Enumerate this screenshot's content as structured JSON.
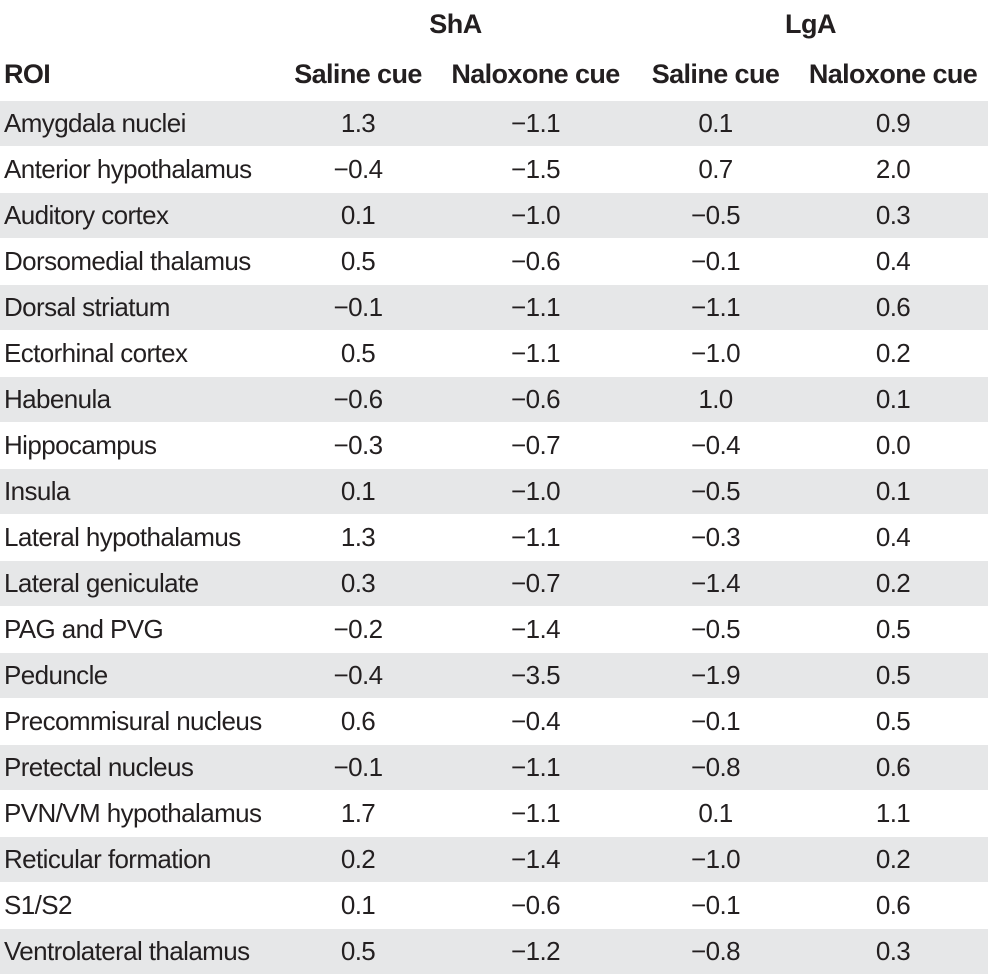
{
  "table": {
    "group_headers": [
      "ShA",
      "LgA"
    ],
    "column_headers": [
      "ROI",
      "Saline cue",
      "Naloxone cue",
      "Saline cue",
      "Naloxone cue"
    ],
    "rows": [
      {
        "roi": "Amygdala nuclei",
        "sha_saline": "1.3",
        "sha_naloxone": "−1.1",
        "lga_saline": "0.1",
        "lga_naloxone": "0.9"
      },
      {
        "roi": "Anterior hypothalamus",
        "sha_saline": "−0.4",
        "sha_naloxone": "−1.5",
        "lga_saline": "0.7",
        "lga_naloxone": "2.0"
      },
      {
        "roi": "Auditory cortex",
        "sha_saline": "0.1",
        "sha_naloxone": "−1.0",
        "lga_saline": "−0.5",
        "lga_naloxone": "0.3"
      },
      {
        "roi": "Dorsomedial thalamus",
        "sha_saline": "0.5",
        "sha_naloxone": "−0.6",
        "lga_saline": "−0.1",
        "lga_naloxone": "0.4"
      },
      {
        "roi": "Dorsal striatum",
        "sha_saline": "−0.1",
        "sha_naloxone": "−1.1",
        "lga_saline": "−1.1",
        "lga_naloxone": "0.6"
      },
      {
        "roi": "Ectorhinal cortex",
        "sha_saline": "0.5",
        "sha_naloxone": "−1.1",
        "lga_saline": "−1.0",
        "lga_naloxone": "0.2"
      },
      {
        "roi": "Habenula",
        "sha_saline": "−0.6",
        "sha_naloxone": "−0.6",
        "lga_saline": "1.0",
        "lga_naloxone": "0.1"
      },
      {
        "roi": "Hippocampus",
        "sha_saline": "−0.3",
        "sha_naloxone": "−0.7",
        "lga_saline": "−0.4",
        "lga_naloxone": "0.0"
      },
      {
        "roi": "Insula",
        "sha_saline": "0.1",
        "sha_naloxone": "−1.0",
        "lga_saline": "−0.5",
        "lga_naloxone": "0.1"
      },
      {
        "roi": "Lateral hypothalamus",
        "sha_saline": "1.3",
        "sha_naloxone": "−1.1",
        "lga_saline": "−0.3",
        "lga_naloxone": "0.4"
      },
      {
        "roi": "Lateral geniculate",
        "sha_saline": "0.3",
        "sha_naloxone": "−0.7",
        "lga_saline": "−1.4",
        "lga_naloxone": "0.2"
      },
      {
        "roi": "PAG and PVG",
        "sha_saline": "−0.2",
        "sha_naloxone": "−1.4",
        "lga_saline": "−0.5",
        "lga_naloxone": "0.5"
      },
      {
        "roi": "Peduncle",
        "sha_saline": "−0.4",
        "sha_naloxone": "−3.5",
        "lga_saline": "−1.9",
        "lga_naloxone": "0.5"
      },
      {
        "roi": "Precommisural nucleus",
        "sha_saline": "0.6",
        "sha_naloxone": "−0.4",
        "lga_saline": "−0.1",
        "lga_naloxone": "0.5"
      },
      {
        "roi": "Pretectal nucleus",
        "sha_saline": "−0.1",
        "sha_naloxone": "−1.1",
        "lga_saline": "−0.8",
        "lga_naloxone": "0.6"
      },
      {
        "roi": "PVN/VM hypothalamus",
        "sha_saline": "1.7",
        "sha_naloxone": "−1.1",
        "lga_saline": "0.1",
        "lga_naloxone": "1.1"
      },
      {
        "roi": "Reticular formation",
        "sha_saline": "0.2",
        "sha_naloxone": "−1.4",
        "lga_saline": "−1.0",
        "lga_naloxone": "0.2"
      },
      {
        "roi": "S1/S2",
        "sha_saline": "0.1",
        "sha_naloxone": "−0.6",
        "lga_saline": "−0.1",
        "lga_naloxone": "0.6"
      },
      {
        "roi": "Ventrolateral thalamus",
        "sha_saline": "0.5",
        "sha_naloxone": "−1.2",
        "lga_saline": "−0.8",
        "lga_naloxone": "0.3"
      }
    ]
  },
  "colors": {
    "row_shade": "#e6e7e8",
    "text": "#231f20",
    "background": "#ffffff"
  }
}
